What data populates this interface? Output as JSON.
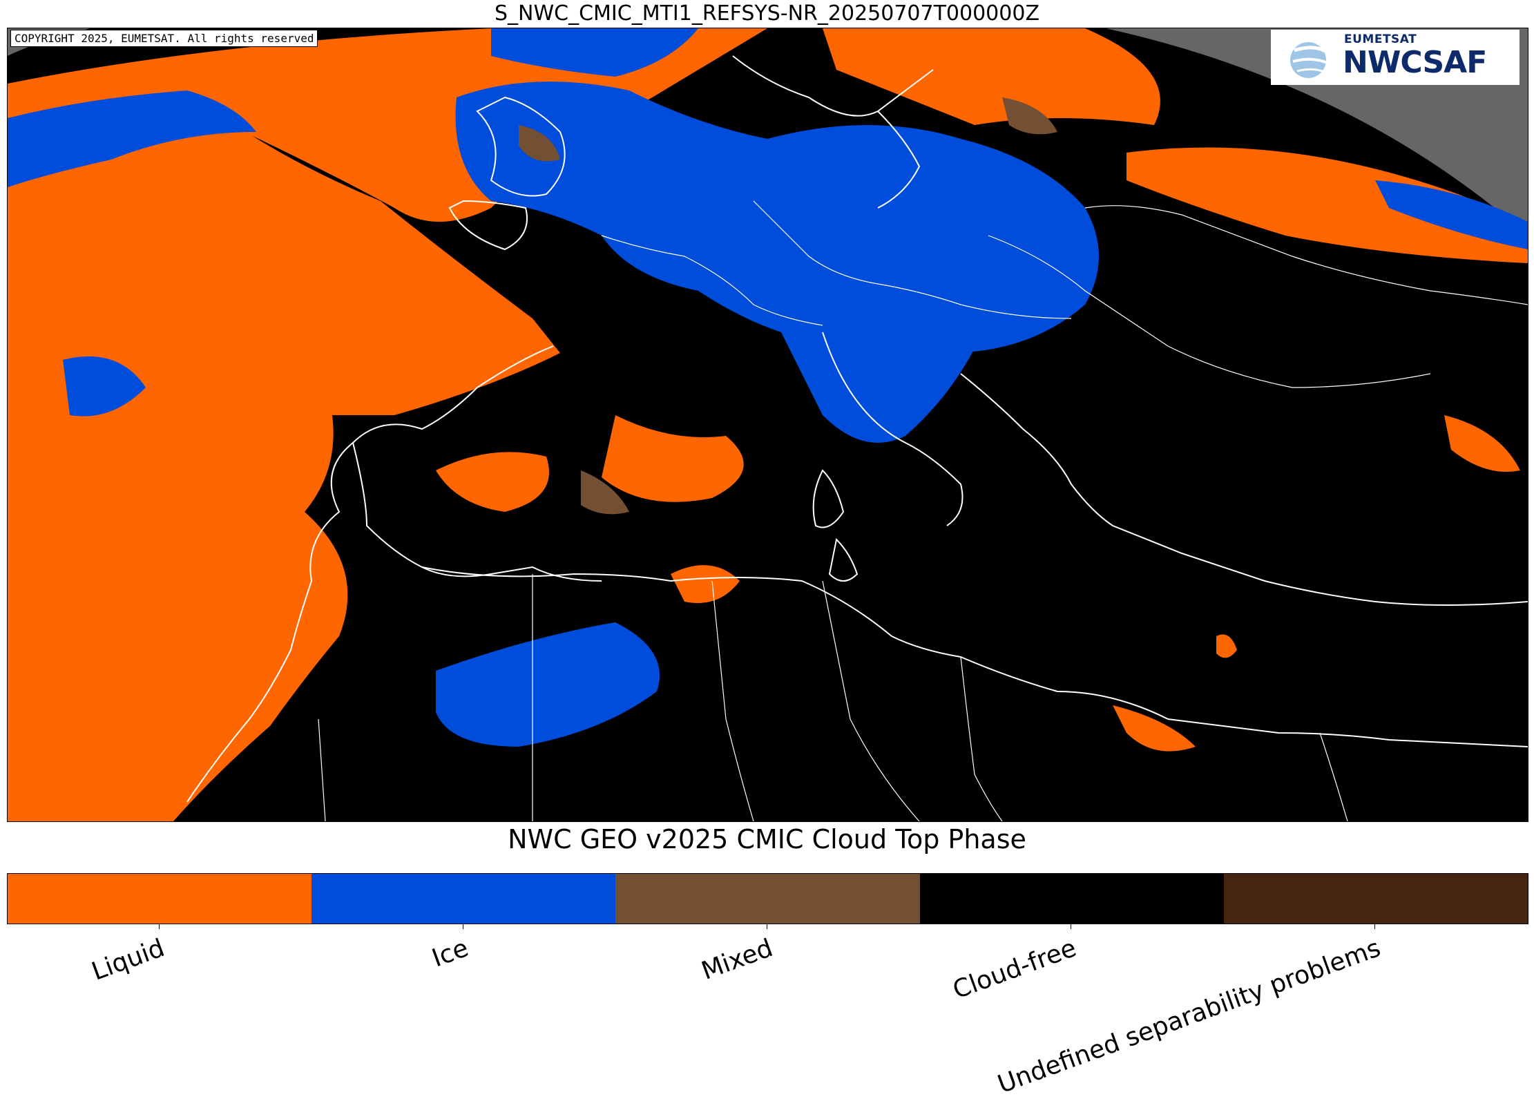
{
  "title": "S_NWC_CMIC_MTI1_REFSYS-NR_20250707T000000Z",
  "copyright": "COPYRIGHT 2025, EUMETSAT. All rights reserved",
  "logo": {
    "org": "EUMETSAT",
    "name": "NWCSAF"
  },
  "legend": {
    "title": "NWC GEO v2025 CMIC Cloud Top Phase",
    "categories": [
      {
        "label": "Liquid",
        "color": "#ff6600"
      },
      {
        "label": "Ice",
        "color": "#004cdb"
      },
      {
        "label": "Mixed",
        "color": "#734f33"
      },
      {
        "label": "Cloud-free",
        "color": "#000000"
      },
      {
        "label": "Undefined separability problems",
        "color": "#47240f"
      }
    ]
  },
  "colors": {
    "space": "#666666",
    "coastline": "#ffffff"
  }
}
